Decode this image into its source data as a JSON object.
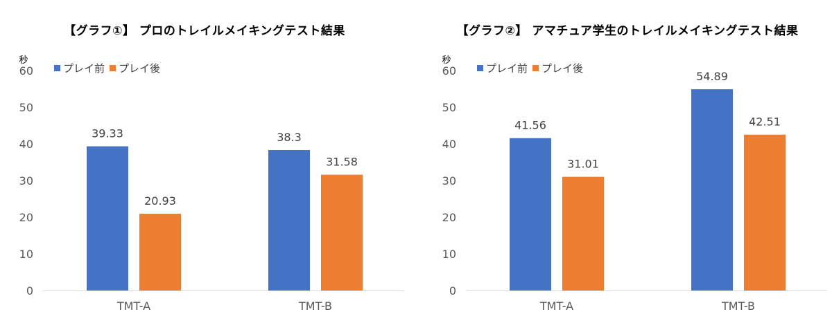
{
  "chart_data": [
    {
      "type": "bar",
      "title": "【グラフ①】 プロのトレイルメイキングテスト結果",
      "ylabel": "秒",
      "categories": [
        "TMT-A",
        "TMT-B"
      ],
      "series": [
        {
          "name": "プレイ前",
          "values": [
            39.33,
            38.3
          ],
          "labels": [
            "39.33",
            "38.3"
          ],
          "color": "#4472C4"
        },
        {
          "name": "プレイ後",
          "values": [
            20.93,
            31.58
          ],
          "labels": [
            "20.93",
            "31.58"
          ],
          "color": "#ED7D31"
        }
      ],
      "ylim": [
        0,
        60
      ],
      "yticks": [
        "0",
        "10",
        "20",
        "30",
        "40",
        "50",
        "60"
      ],
      "grid": false,
      "legend": "top-left"
    },
    {
      "type": "bar",
      "title": "【グラフ②】 アマチュア学生のトレイルメイキングテスト結果",
      "ylabel": "秒",
      "categories": [
        "TMT-A",
        "TMT-B"
      ],
      "series": [
        {
          "name": "プレイ前",
          "values": [
            41.56,
            54.89
          ],
          "labels": [
            "41.56",
            "54.89"
          ],
          "color": "#4472C4"
        },
        {
          "name": "プレイ後",
          "values": [
            31.01,
            42.51
          ],
          "labels": [
            "31.01",
            "42.51"
          ],
          "color": "#ED7D31"
        }
      ],
      "ylim": [
        0,
        60
      ],
      "yticks": [
        "0",
        "10",
        "20",
        "30",
        "40",
        "50",
        "60"
      ],
      "grid": false,
      "legend": "top-left"
    }
  ]
}
